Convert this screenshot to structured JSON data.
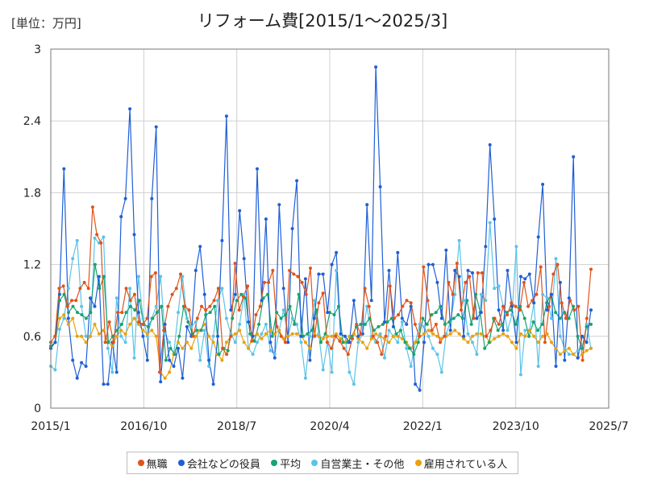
{
  "unit_label": "[単位：万円]",
  "chart_data": {
    "type": "line",
    "title": "リフォーム費[2015/1～2025/3]",
    "xlabel": "",
    "ylabel": "",
    "ylim": [
      0,
      3
    ],
    "y_ticks": [
      "0",
      "0.6",
      "1.2",
      "1.8",
      "2.4",
      "3"
    ],
    "x_ticks": [
      "2015/1",
      "2016/10",
      "2018/7",
      "2020/4",
      "2022/1",
      "2023/10",
      "2025/7"
    ],
    "x_range": [
      "2015-01",
      "2025-07"
    ],
    "x_start": "2015-01",
    "x_end": "2025-03",
    "grid": true,
    "legend_position": "bottom",
    "series": [
      {
        "name": "無職",
        "color": "#e0541b",
        "values": [
          0.55,
          0.6,
          1.0,
          1.02,
          0.85,
          0.9,
          0.9,
          1.0,
          1.05,
          1.0,
          1.68,
          1.45,
          1.38,
          0.55,
          0.72,
          0.55,
          0.8,
          0.8,
          1.0,
          0.9,
          0.95,
          0.72,
          0.7,
          0.75,
          1.1,
          1.13,
          0.3,
          0.65,
          0.85,
          0.95,
          1.0,
          1.12,
          0.85,
          0.82,
          0.6,
          0.75,
          0.85,
          0.82,
          0.85,
          0.9,
          1.0,
          0.5,
          0.45,
          0.6,
          1.21,
          0.82,
          0.93,
          1.02,
          0.56,
          0.78,
          0.85,
          1.05,
          1.05,
          1.15,
          0.68,
          0.6,
          0.55,
          1.15,
          1.12,
          1.1,
          1.05,
          0.95,
          1.17,
          0.6,
          0.88,
          0.96,
          0.55,
          0.5,
          0.6,
          0.56,
          0.5,
          0.45,
          0.58,
          0.7,
          0.62,
          1.0,
          0.85,
          0.6,
          0.55,
          0.45,
          0.6,
          1.02,
          0.75,
          0.78,
          0.85,
          0.9,
          0.88,
          0.7,
          0.6,
          1.18,
          0.9,
          0.65,
          0.7,
          0.55,
          0.6,
          1.05,
          0.95,
          1.21,
          0.82,
          1.05,
          1.1,
          0.75,
          1.13,
          1.13,
          0.6,
          0.65,
          0.75,
          0.7,
          0.85,
          0.78,
          0.88,
          0.85,
          0.82,
          1.05,
          0.85,
          0.9,
          0.95,
          1.18,
          0.55,
          0.85,
          1.12,
          1.2,
          0.88,
          0.75,
          0.9,
          0.82,
          0.85,
          0.4,
          0.75,
          1.16
        ]
      },
      {
        "name": "会社などの役員",
        "color": "#1f5fd6",
        "values": [
          0.5,
          0.55,
          0.95,
          2.0,
          0.75,
          0.4,
          0.25,
          0.38,
          0.35,
          0.92,
          0.85,
          1.1,
          0.2,
          0.2,
          0.55,
          0.3,
          1.6,
          1.75,
          2.5,
          1.45,
          0.8,
          0.6,
          0.4,
          1.75,
          2.35,
          0.22,
          0.7,
          0.4,
          0.35,
          0.5,
          0.25,
          0.68,
          0.6,
          1.15,
          1.35,
          0.95,
          0.4,
          0.2,
          0.6,
          1.4,
          2.44,
          0.82,
          0.95,
          1.65,
          1.25,
          0.72,
          0.6,
          2.0,
          0.9,
          1.58,
          0.55,
          0.42,
          1.7,
          1.0,
          0.55,
          1.5,
          1.9,
          0.6,
          1.08,
          0.4,
          0.75,
          1.12,
          1.12,
          0.8,
          1.2,
          1.3,
          0.62,
          0.6,
          0.55,
          0.9,
          0.6,
          0.62,
          1.7,
          0.9,
          2.85,
          1.85,
          0.72,
          1.15,
          0.68,
          1.3,
          0.75,
          0.7,
          0.85,
          0.2,
          0.15,
          0.55,
          1.2,
          1.2,
          1.05,
          0.75,
          1.32,
          0.65,
          1.15,
          1.1,
          0.6,
          1.15,
          1.13,
          0.75,
          0.8,
          1.35,
          2.2,
          1.58,
          0.82,
          0.65,
          1.15,
          0.85,
          0.55,
          1.1,
          1.08,
          1.12,
          0.88,
          1.43,
          1.87,
          0.82,
          0.95,
          0.35,
          1.05,
          0.4,
          0.92,
          2.1,
          0.42,
          0.6,
          0.55,
          0.82
        ]
      },
      {
        "name": "平均",
        "color": "#1aa36e",
        "values": [
          0.52,
          0.55,
          0.9,
          0.95,
          0.8,
          0.85,
          0.8,
          0.78,
          0.75,
          0.8,
          1.2,
          1.0,
          1.1,
          0.55,
          0.6,
          0.65,
          0.7,
          0.8,
          0.85,
          0.82,
          0.9,
          0.7,
          0.68,
          0.75,
          0.8,
          0.85,
          0.4,
          0.5,
          0.45,
          0.6,
          0.85,
          0.72,
          0.62,
          0.65,
          0.65,
          0.78,
          0.8,
          0.85,
          0.45,
          0.5,
          0.48,
          0.75,
          0.9,
          0.95,
          0.92,
          0.62,
          0.56,
          0.7,
          0.92,
          0.95,
          0.6,
          0.8,
          0.75,
          0.78,
          0.85,
          0.7,
          0.95,
          0.6,
          0.62,
          0.65,
          0.82,
          0.55,
          0.62,
          0.8,
          0.78,
          0.85,
          0.55,
          0.55,
          0.6,
          0.68,
          0.7,
          0.7,
          0.75,
          0.65,
          0.68,
          0.7,
          0.72,
          0.75,
          0.62,
          0.65,
          0.55,
          0.5,
          0.45,
          0.55,
          0.75,
          0.7,
          0.78,
          0.8,
          0.85,
          0.7,
          0.72,
          0.75,
          0.78,
          0.75,
          0.9,
          0.7,
          0.95,
          0.8,
          0.5,
          0.55,
          0.75,
          0.65,
          0.7,
          0.8,
          0.82,
          0.7,
          0.85,
          0.75,
          0.6,
          0.72,
          0.65,
          0.7,
          0.88,
          0.95,
          0.8,
          0.75,
          0.8,
          0.75,
          0.85,
          0.6,
          0.5,
          0.68,
          0.7
        ]
      },
      {
        "name": "自営業主・その他",
        "color": "#5bc4e8",
        "values": [
          0.35,
          0.32,
          0.66,
          0.75,
          1.0,
          1.25,
          1.4,
          0.85,
          0.6,
          0.6,
          1.42,
          1.38,
          1.43,
          0.5,
          0.3,
          0.92,
          0.6,
          0.55,
          1.0,
          0.42,
          1.1,
          0.75,
          0.6,
          0.75,
          0.85,
          1.1,
          0.62,
          0.55,
          0.45,
          0.8,
          1.1,
          0.75,
          0.68,
          0.72,
          0.4,
          0.65,
          0.35,
          0.6,
          0.9,
          1.0,
          0.75,
          0.62,
          0.55,
          0.7,
          0.95,
          0.5,
          0.45,
          0.55,
          0.62,
          0.7,
          0.48,
          0.45,
          0.65,
          0.82,
          0.6,
          0.75,
          0.7,
          0.55,
          0.25,
          0.6,
          0.9,
          0.62,
          0.32,
          0.55,
          0.3,
          1.15,
          0.62,
          0.6,
          0.3,
          0.2,
          0.55,
          0.62,
          0.85,
          0.6,
          0.55,
          0.62,
          0.42,
          0.65,
          0.6,
          0.55,
          0.72,
          0.5,
          0.35,
          0.55,
          0.7,
          0.68,
          0.6,
          0.5,
          0.45,
          0.3,
          0.62,
          0.72,
          0.95,
          1.4,
          0.9,
          0.62,
          0.55,
          0.45,
          0.95,
          0.9,
          1.55,
          1.0,
          1.02,
          0.85,
          0.65,
          0.78,
          1.35,
          0.28,
          0.65,
          0.65,
          0.88,
          0.35,
          0.95,
          0.92,
          0.75,
          1.25,
          0.6,
          0.5,
          0.45,
          0.45,
          0.48,
          0.5,
          0.7,
          0.5
        ]
      },
      {
        "name": "雇用されている人",
        "color": "#eaa10d",
        "values": [
          0.5,
          0.55,
          0.75,
          0.78,
          0.7,
          0.75,
          0.6,
          0.6,
          0.55,
          0.6,
          0.7,
          0.62,
          0.65,
          0.55,
          0.52,
          0.6,
          0.65,
          0.62,
          0.7,
          0.75,
          0.7,
          0.65,
          0.62,
          0.65,
          0.6,
          0.3,
          0.25,
          0.3,
          0.45,
          0.55,
          0.5,
          0.55,
          0.5,
          0.6,
          0.65,
          0.7,
          0.6,
          0.55,
          0.45,
          0.4,
          0.55,
          0.6,
          0.62,
          0.65,
          0.55,
          0.5,
          0.6,
          0.62,
          0.58,
          0.62,
          0.65,
          0.62,
          0.65,
          0.58,
          0.6,
          0.62,
          0.62,
          0.6,
          0.55,
          0.5,
          0.62,
          0.6,
          0.58,
          0.6,
          0.6,
          0.62,
          0.58,
          0.55,
          0.6,
          0.62,
          0.58,
          0.55,
          0.5,
          0.58,
          0.62,
          0.6,
          0.58,
          0.55,
          0.6,
          0.6,
          0.58,
          0.55,
          0.5,
          0.55,
          0.6,
          0.62,
          0.65,
          0.62,
          0.6,
          0.58,
          0.6,
          0.62,
          0.65,
          0.62,
          0.58,
          0.55,
          0.6,
          0.62,
          0.62,
          0.6,
          0.55,
          0.58,
          0.6,
          0.62,
          0.6,
          0.55,
          0.5,
          0.62,
          0.6,
          0.65,
          0.6,
          0.55,
          0.6,
          0.62,
          0.55,
          0.5,
          0.45,
          0.48,
          0.5,
          0.45,
          0.42,
          0.45,
          0.48,
          0.5
        ]
      }
    ]
  }
}
